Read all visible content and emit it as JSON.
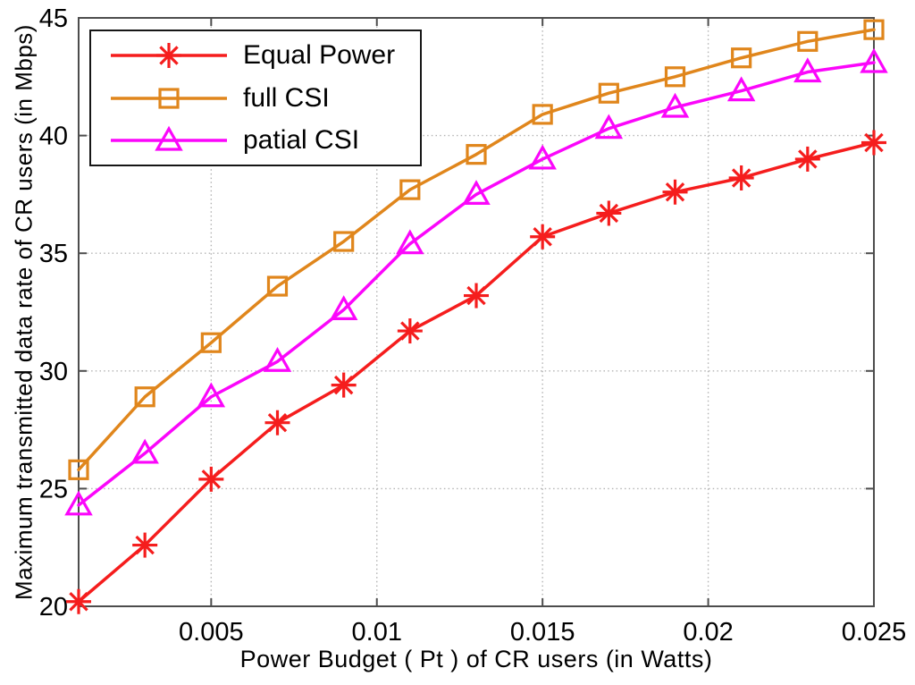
{
  "chart_data": {
    "type": "line",
    "title": "",
    "xlabel": "Power Budget ( Pt ) of CR users (in Watts)",
    "ylabel": "Maximum transmitted data rate of CR users (in Mbps)",
    "xlim": [
      0.001,
      0.025
    ],
    "ylim": [
      20,
      45
    ],
    "xticks": [
      0.005,
      0.01,
      0.015,
      0.02,
      0.025
    ],
    "xtick_labels": [
      "0.005",
      "0.01",
      "0.015",
      "0.02",
      "0.025"
    ],
    "yticks": [
      20,
      25,
      30,
      35,
      40,
      45
    ],
    "ytick_labels": [
      "20",
      "25",
      "30",
      "35",
      "40",
      "45"
    ],
    "grid": true,
    "grid_style": "dotted",
    "legend_position": "top-left",
    "x": [
      0.001,
      0.003,
      0.005,
      0.007,
      0.009,
      0.011,
      0.013,
      0.015,
      0.017,
      0.019,
      0.021,
      0.023,
      0.025
    ],
    "series": [
      {
        "name": "Equal Power",
        "color": "#f51d1d",
        "marker": "asterisk",
        "values": [
          20.2,
          22.6,
          25.4,
          27.8,
          29.4,
          31.7,
          33.2,
          35.7,
          36.7,
          37.6,
          38.2,
          39.0,
          39.7
        ]
      },
      {
        "name": "full CSI",
        "color": "#e0861c",
        "marker": "square",
        "values": [
          25.8,
          28.9,
          31.2,
          33.6,
          35.5,
          37.7,
          39.2,
          40.9,
          41.8,
          42.5,
          43.3,
          44.0,
          44.5
        ]
      },
      {
        "name": "patial CSI",
        "color": "#fb06fb",
        "marker": "triangle",
        "values": [
          24.3,
          26.5,
          28.9,
          30.4,
          32.6,
          35.4,
          37.5,
          39.0,
          40.3,
          41.2,
          41.9,
          42.7,
          43.1
        ]
      }
    ]
  },
  "style": {
    "axis_color": "#4d4d4d",
    "grid_color": "#b3b3b3",
    "text_color": "#000000",
    "background": "#ffffff",
    "legend_border": "#161616"
  }
}
